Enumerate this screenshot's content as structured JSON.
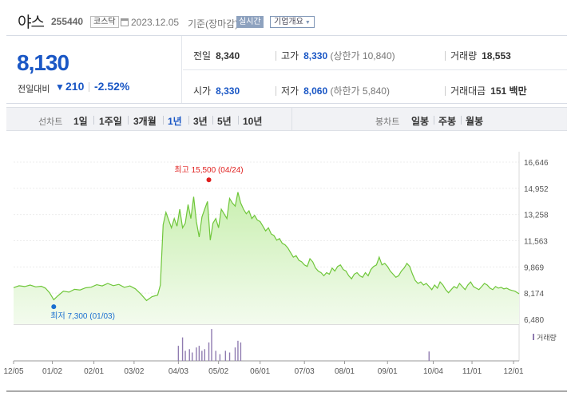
{
  "header": {
    "stock_name": "야스",
    "stock_code": "255440",
    "market": "코스닥",
    "date": "2023.12.05",
    "basis": "기준(장마감)",
    "realtime_label": "실시간",
    "company_overview_label": "기업개요"
  },
  "quote": {
    "current_price": "8,130",
    "change_label": "전일대비",
    "direction_icon": "down-triangle-icon",
    "change": "210",
    "change_pct": "-2.52%",
    "prev_close_label": "전일",
    "prev_close": "8,340",
    "high_label": "고가",
    "high": "8,330",
    "upper_limit": "(상한가 10,840)",
    "volume_label": "거래량",
    "volume": "18,553",
    "open_label": "시가",
    "open": "8,330",
    "low_label": "저가",
    "low": "8,060",
    "lower_limit": "(하한가 5,840)",
    "value_label": "거래대금",
    "value": "151",
    "value_unit": "백만"
  },
  "period_bar": {
    "line_label": "선차트",
    "line_items": [
      "1일",
      "1주일",
      "3개월",
      "1년",
      "3년",
      "5년",
      "10년"
    ],
    "active_item": "1년",
    "candle_label": "봉차트",
    "candle_items": [
      "일봉",
      "주봉",
      "월봉"
    ]
  },
  "colors": {
    "price_down": "#1a57c5",
    "line": "#6fc63a",
    "area_top": "#c9efb0",
    "area_bottom": "#f3fbee",
    "high_marker": "#e0201f",
    "low_marker": "#1a6fd0",
    "volume_bar": "#8f7bb0"
  },
  "chart_data": {
    "type": "area",
    "y_ticks": [
      "16,646",
      "14,952",
      "13,258",
      "11,563",
      "9,869",
      "8,174",
      "6,480"
    ],
    "ylim": [
      6480,
      16646
    ],
    "x_labels": [
      "12/05",
      "01/02",
      "02/01",
      "03/02",
      "04/03",
      "05/02",
      "06/01",
      "07/03",
      "08/01",
      "09/01",
      "10/04",
      "11/01",
      "12/01"
    ],
    "x_label_day_index": [
      0,
      28,
      58,
      87,
      119,
      148,
      178,
      210,
      239,
      270,
      303,
      331,
      361
    ],
    "total_days": 366,
    "high_annotation": "최고 15,500 (04/24)",
    "high_point": {
      "day": 141,
      "value": 15500
    },
    "low_annotation": "최저 7,300 (01/03)",
    "low_point": {
      "day": 29,
      "value": 7300
    },
    "volume_legend": "거래량",
    "series": [
      {
        "values": [
          [
            0,
            8530
          ],
          [
            4,
            8650
          ],
          [
            8,
            8600
          ],
          [
            12,
            8700
          ],
          [
            16,
            8580
          ],
          [
            20,
            8620
          ],
          [
            23,
            8500
          ],
          [
            26,
            8200
          ],
          [
            29,
            7750
          ],
          [
            32,
            8000
          ],
          [
            36,
            8300
          ],
          [
            40,
            8240
          ],
          [
            44,
            8420
          ],
          [
            48,
            8380
          ],
          [
            52,
            8520
          ],
          [
            56,
            8560
          ],
          [
            60,
            8720
          ],
          [
            64,
            8640
          ],
          [
            68,
            8800
          ],
          [
            72,
            8660
          ],
          [
            76,
            8740
          ],
          [
            80,
            8550
          ],
          [
            84,
            8640
          ],
          [
            88,
            8450
          ],
          [
            92,
            8100
          ],
          [
            96,
            7700
          ],
          [
            100,
            7950
          ],
          [
            104,
            8050
          ],
          [
            106,
            8700
          ],
          [
            108,
            12600
          ],
          [
            110,
            13400
          ],
          [
            112,
            12900
          ],
          [
            114,
            12400
          ],
          [
            116,
            13000
          ],
          [
            118,
            12500
          ],
          [
            120,
            13600
          ],
          [
            122,
            12400
          ],
          [
            124,
            12700
          ],
          [
            126,
            13900
          ],
          [
            128,
            13000
          ],
          [
            130,
            14400
          ],
          [
            132,
            12800
          ],
          [
            134,
            11800
          ],
          [
            136,
            13100
          ],
          [
            138,
            13600
          ],
          [
            140,
            14100
          ],
          [
            142,
            11600
          ],
          [
            144,
            12700
          ],
          [
            146,
            13000
          ],
          [
            148,
            12400
          ],
          [
            150,
            13600
          ],
          [
            152,
            13300
          ],
          [
            154,
            13000
          ],
          [
            156,
            14300
          ],
          [
            158,
            14000
          ],
          [
            160,
            13800
          ],
          [
            162,
            14700
          ],
          [
            164,
            14000
          ],
          [
            166,
            13600
          ],
          [
            168,
            13300
          ],
          [
            170,
            13500
          ],
          [
            172,
            13000
          ],
          [
            174,
            13200
          ],
          [
            176,
            12900
          ],
          [
            178,
            12800
          ],
          [
            180,
            12500
          ],
          [
            182,
            12200
          ],
          [
            184,
            12400
          ],
          [
            186,
            12000
          ],
          [
            188,
            11900
          ],
          [
            190,
            11600
          ],
          [
            192,
            11700
          ],
          [
            194,
            11400
          ],
          [
            196,
            11300
          ],
          [
            198,
            11100
          ],
          [
            200,
            10800
          ],
          [
            202,
            10500
          ],
          [
            204,
            10600
          ],
          [
            206,
            10300
          ],
          [
            208,
            10200
          ],
          [
            210,
            10000
          ],
          [
            212,
            9900
          ],
          [
            214,
            10400
          ],
          [
            216,
            10200
          ],
          [
            218,
            9800
          ],
          [
            220,
            9600
          ],
          [
            222,
            9500
          ],
          [
            224,
            9300
          ],
          [
            226,
            9500
          ],
          [
            228,
            9400
          ],
          [
            230,
            9800
          ],
          [
            232,
            9600
          ],
          [
            234,
            9900
          ],
          [
            236,
            10000
          ],
          [
            238,
            9700
          ],
          [
            240,
            9600
          ],
          [
            242,
            9300
          ],
          [
            244,
            9100
          ],
          [
            246,
            9400
          ],
          [
            248,
            9500
          ],
          [
            250,
            9300
          ],
          [
            252,
            9200
          ],
          [
            254,
            9500
          ],
          [
            256,
            9300
          ],
          [
            258,
            9700
          ],
          [
            260,
            9900
          ],
          [
            262,
            10000
          ],
          [
            264,
            10500
          ],
          [
            266,
            10000
          ],
          [
            268,
            10100
          ],
          [
            270,
            9900
          ],
          [
            272,
            9600
          ],
          [
            274,
            9400
          ],
          [
            276,
            9200
          ],
          [
            278,
            9300
          ],
          [
            280,
            9600
          ],
          [
            282,
            9800
          ],
          [
            284,
            10100
          ],
          [
            286,
            9900
          ],
          [
            288,
            9400
          ],
          [
            290,
            9000
          ],
          [
            292,
            8800
          ],
          [
            294,
            8900
          ],
          [
            296,
            8700
          ],
          [
            298,
            8800
          ],
          [
            300,
            8600
          ],
          [
            302,
            8400
          ],
          [
            304,
            8700
          ],
          [
            306,
            8500
          ],
          [
            308,
            8900
          ],
          [
            310,
            8700
          ],
          [
            312,
            8400
          ],
          [
            314,
            8200
          ],
          [
            316,
            8400
          ],
          [
            318,
            8600
          ],
          [
            320,
            8500
          ],
          [
            322,
            8800
          ],
          [
            324,
            8600
          ],
          [
            326,
            8400
          ],
          [
            328,
            8700
          ],
          [
            330,
            8900
          ],
          [
            332,
            8600
          ],
          [
            334,
            8500
          ],
          [
            336,
            8400
          ],
          [
            338,
            8600
          ],
          [
            340,
            8800
          ],
          [
            342,
            8700
          ],
          [
            344,
            8500
          ],
          [
            346,
            8400
          ],
          [
            348,
            8600
          ],
          [
            350,
            8500
          ],
          [
            352,
            8550
          ],
          [
            354,
            8450
          ],
          [
            356,
            8500
          ],
          [
            358,
            8400
          ],
          [
            360,
            8350
          ],
          [
            362,
            8300
          ],
          [
            365,
            8130
          ]
        ]
      }
    ],
    "volume_spikes": [
      [
        119,
        0.45
      ],
      [
        122,
        0.7
      ],
      [
        124,
        0.3
      ],
      [
        127,
        0.35
      ],
      [
        129,
        0.25
      ],
      [
        132,
        0.4
      ],
      [
        134,
        0.45
      ],
      [
        136,
        0.3
      ],
      [
        138,
        0.35
      ],
      [
        141,
        0.55
      ],
      [
        143,
        0.95
      ],
      [
        146,
        0.3
      ],
      [
        149,
        0.2
      ],
      [
        153,
        0.3
      ],
      [
        156,
        0.25
      ],
      [
        160,
        0.4
      ],
      [
        162,
        0.6
      ],
      [
        164,
        0.55
      ],
      [
        300,
        0.28
      ]
    ],
    "volume_unit": "relative"
  }
}
